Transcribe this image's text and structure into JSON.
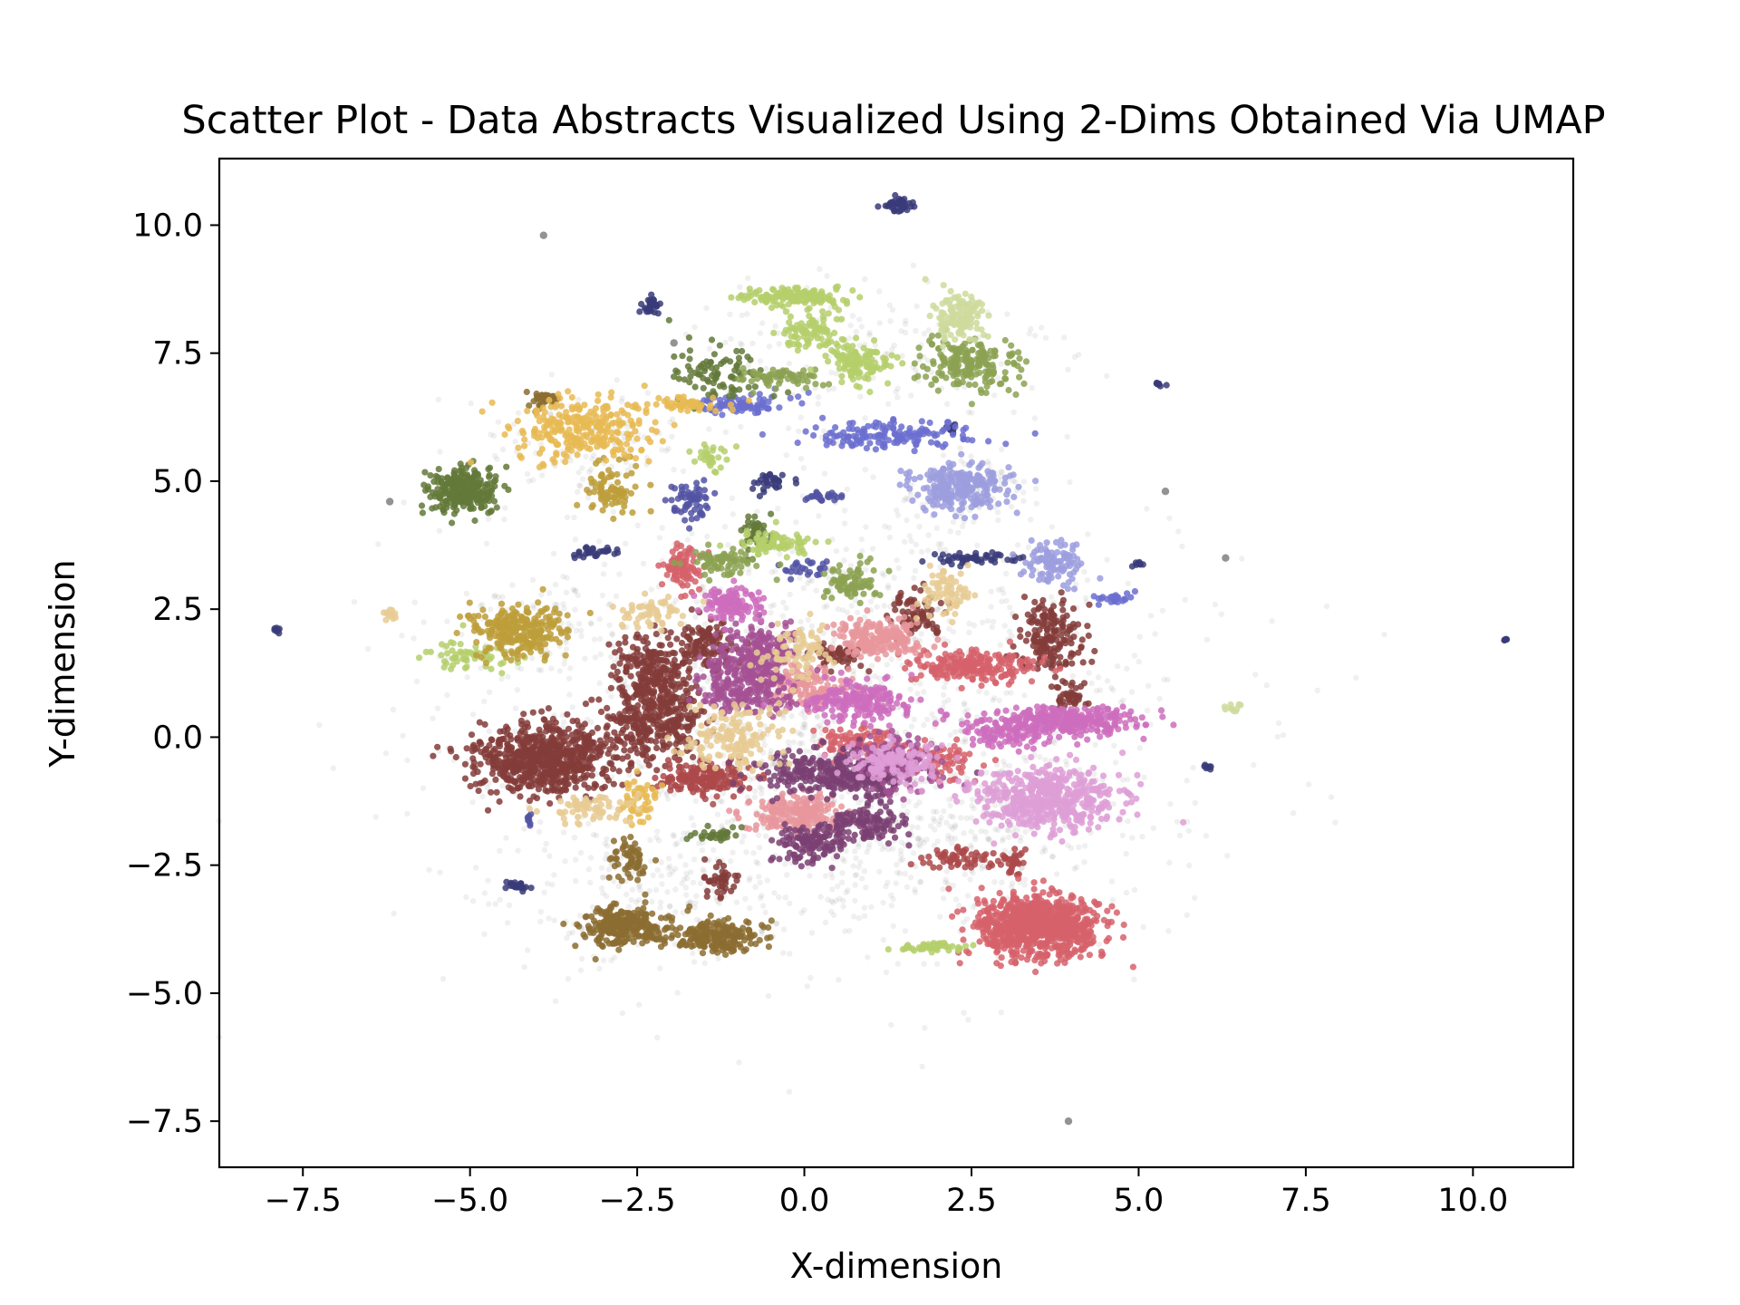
{
  "chart_data": {
    "type": "scatter",
    "title": "Scatter Plot - Data Abstracts Visualized Using 2-Dims Obtained Via UMAP",
    "xlabel": "X-dimension",
    "ylabel": "Y-dimension",
    "xlim": [
      -8.75,
      11.5
    ],
    "ylim": [
      -8.4,
      11.3
    ],
    "xticks": [
      -7.5,
      -5.0,
      -2.5,
      0.0,
      2.5,
      5.0,
      7.5,
      10.0
    ],
    "yticks": [
      -7.5,
      -5.0,
      -2.5,
      0.0,
      2.5,
      5.0,
      7.5,
      10.0
    ],
    "xtick_labels": [
      "−7.5",
      "−5.0",
      "−2.5",
      "0.0",
      "2.5",
      "5.0",
      "7.5",
      "10.0"
    ],
    "ytick_labels": [
      "−7.5",
      "−5.0",
      "−2.5",
      "0.0",
      "2.5",
      "5.0",
      "7.5",
      "10.0"
    ],
    "grid": false,
    "legend": "none",
    "background_points": {
      "color": "#808080",
      "clusters": [
        {
          "cx": 0.3,
          "cy": 0.3,
          "sx": 2.6,
          "sy": 2.2,
          "n": 1600
        },
        {
          "cx": -3.3,
          "cy": 5.8,
          "sx": 0.8,
          "sy": 0.5,
          "n": 120
        },
        {
          "cx": 1.0,
          "cy": 7.5,
          "sx": 1.5,
          "sy": 0.8,
          "n": 160
        },
        {
          "cx": 2.4,
          "cy": 4.8,
          "sx": 0.6,
          "sy": 0.4,
          "n": 80
        },
        {
          "cx": -4.2,
          "cy": 2.1,
          "sx": 0.6,
          "sy": 0.4,
          "n": 80
        },
        {
          "cx": 2.0,
          "cy": -2.0,
          "sx": 1.6,
          "sy": 0.8,
          "n": 200
        },
        {
          "cx": -2.0,
          "cy": -3.2,
          "sx": 1.2,
          "sy": 0.6,
          "n": 120
        }
      ],
      "outliers": [
        {
          "x": -3.9,
          "y": 9.8
        },
        {
          "x": -6.2,
          "y": 4.6
        },
        {
          "x": 5.4,
          "y": 4.8
        },
        {
          "x": 6.3,
          "y": 3.5
        },
        {
          "x": 3.95,
          "y": -7.5
        },
        {
          "x": -1.95,
          "y": 7.7
        }
      ]
    },
    "clusters": [
      {
        "color": "#843c39",
        "cx": -3.9,
        "cy": -0.4,
        "sx": 0.5,
        "sy": 0.35,
        "n": 700
      },
      {
        "color": "#843c39",
        "cx": -2.2,
        "cy": 0.4,
        "sx": 0.35,
        "sy": 0.4,
        "n": 350
      },
      {
        "color": "#843c39",
        "cx": -2.3,
        "cy": 1.4,
        "sx": 0.25,
        "sy": 0.3,
        "n": 160
      },
      {
        "color": "#843c39",
        "cx": -1.5,
        "cy": 1.8,
        "sx": 0.25,
        "sy": 0.25,
        "n": 120
      },
      {
        "color": "#843c39",
        "cx": 3.7,
        "cy": 2.0,
        "sx": 0.25,
        "sy": 0.35,
        "n": 170
      },
      {
        "color": "#843c39",
        "cx": 1.7,
        "cy": 2.4,
        "sx": 0.2,
        "sy": 0.2,
        "n": 80
      },
      {
        "color": "#843c39",
        "cx": -1.3,
        "cy": -2.8,
        "sx": 0.15,
        "sy": 0.15,
        "n": 40
      },
      {
        "color": "#843c39",
        "cx": 0.5,
        "cy": 1.6,
        "sx": 0.2,
        "sy": 0.15,
        "n": 50
      },
      {
        "color": "#843c39",
        "cx": 4.0,
        "cy": 0.8,
        "sx": 0.15,
        "sy": 0.12,
        "n": 40
      },
      {
        "color": "#ad494a",
        "cx": -1.5,
        "cy": -0.8,
        "sx": 0.35,
        "sy": 0.15,
        "n": 180
      },
      {
        "color": "#ad494a",
        "cx": 2.3,
        "cy": -2.4,
        "sx": 0.25,
        "sy": 0.1,
        "n": 60
      },
      {
        "color": "#ad494a",
        "cx": 3.1,
        "cy": -2.4,
        "sx": 0.1,
        "sy": 0.15,
        "n": 30
      },
      {
        "color": "#d6616b",
        "cx": 3.5,
        "cy": -3.7,
        "sx": 0.45,
        "sy": 0.3,
        "n": 850
      },
      {
        "color": "#d6616b",
        "cx": 2.5,
        "cy": 1.4,
        "sx": 0.45,
        "sy": 0.15,
        "n": 220
      },
      {
        "color": "#d6616b",
        "cx": -1.8,
        "cy": 3.3,
        "sx": 0.15,
        "sy": 0.25,
        "n": 90
      },
      {
        "color": "#d6616b",
        "cx": 0.7,
        "cy": -0.1,
        "sx": 0.3,
        "sy": 0.15,
        "n": 90
      },
      {
        "color": "#d6616b",
        "cx": 2.0,
        "cy": -0.5,
        "sx": 0.3,
        "sy": 0.2,
        "n": 70
      },
      {
        "color": "#e7969c",
        "cx": 1.1,
        "cy": 1.9,
        "sx": 0.35,
        "sy": 0.18,
        "n": 200
      },
      {
        "color": "#e7969c",
        "cx": -0.1,
        "cy": -1.5,
        "sx": 0.35,
        "sy": 0.2,
        "n": 200
      },
      {
        "color": "#e7969c",
        "cx": 0.0,
        "cy": 1.0,
        "sx": 0.3,
        "sy": 0.2,
        "n": 140
      },
      {
        "color": "#7b4173",
        "cx": 0.4,
        "cy": -0.7,
        "sx": 0.6,
        "sy": 0.2,
        "n": 300
      },
      {
        "color": "#7b4173",
        "cx": 0.1,
        "cy": -2.1,
        "sx": 0.25,
        "sy": 0.18,
        "n": 120
      },
      {
        "color": "#7b4173",
        "cx": 0.9,
        "cy": -1.7,
        "sx": 0.3,
        "sy": 0.15,
        "n": 120
      },
      {
        "color": "#7b4173",
        "cx": 1.1,
        "cy": -0.8,
        "sx": 0.2,
        "sy": 0.25,
        "n": 70
      },
      {
        "color": "#a55194",
        "cx": -0.9,
        "cy": 1.1,
        "sx": 0.35,
        "sy": 0.3,
        "n": 300
      },
      {
        "color": "#a55194",
        "cx": -0.6,
        "cy": 1.8,
        "sx": 0.25,
        "sy": 0.2,
        "n": 120
      },
      {
        "color": "#a55194",
        "cx": 1.4,
        "cy": -0.5,
        "sx": 0.3,
        "sy": 0.25,
        "n": 120
      },
      {
        "color": "#ce6dbd",
        "cx": -1.1,
        "cy": 2.6,
        "sx": 0.2,
        "sy": 0.18,
        "n": 120
      },
      {
        "color": "#ce6dbd",
        "cx": 3.9,
        "cy": 0.3,
        "sx": 0.6,
        "sy": 0.15,
        "n": 300
      },
      {
        "color": "#ce6dbd",
        "cx": 0.8,
        "cy": 0.7,
        "sx": 0.4,
        "sy": 0.2,
        "n": 200
      },
      {
        "color": "#ce6dbd",
        "cx": 2.9,
        "cy": 0.1,
        "sx": 0.3,
        "sy": 0.15,
        "n": 90
      },
      {
        "color": "#de9ed6",
        "cx": 3.6,
        "cy": -1.2,
        "sx": 0.55,
        "sy": 0.3,
        "n": 500
      },
      {
        "color": "#de9ed6",
        "cx": 1.3,
        "cy": -0.5,
        "sx": 0.35,
        "sy": 0.2,
        "n": 150
      },
      {
        "color": "#393b79",
        "cx": 1.4,
        "cy": 10.4,
        "sx": 0.12,
        "sy": 0.08,
        "n": 40
      },
      {
        "color": "#393b79",
        "cx": -2.3,
        "cy": 8.4,
        "sx": 0.06,
        "sy": 0.08,
        "n": 30
      },
      {
        "color": "#393b79",
        "cx": -7.9,
        "cy": 2.1,
        "sx": 0.03,
        "sy": 0.03,
        "n": 8
      },
      {
        "color": "#393b79",
        "cx": 10.5,
        "cy": 1.9,
        "sx": 0.02,
        "sy": 0.02,
        "n": 6
      },
      {
        "color": "#393b79",
        "cx": 5.3,
        "cy": 6.9,
        "sx": 0.04,
        "sy": 0.03,
        "n": 8
      },
      {
        "color": "#393b79",
        "cx": 6.0,
        "cy": -0.6,
        "sx": 0.04,
        "sy": 0.03,
        "n": 8
      },
      {
        "color": "#393b79",
        "cx": 2.5,
        "cy": 3.5,
        "sx": 0.3,
        "sy": 0.06,
        "n": 50
      },
      {
        "color": "#393b79",
        "cx": 5.0,
        "cy": 3.4,
        "sx": 0.05,
        "sy": 0.05,
        "n": 10
      },
      {
        "color": "#393b79",
        "cx": -3.2,
        "cy": 3.6,
        "sx": 0.2,
        "sy": 0.06,
        "n": 30
      },
      {
        "color": "#393b79",
        "cx": -0.5,
        "cy": 5.0,
        "sx": 0.15,
        "sy": 0.1,
        "n": 30
      },
      {
        "color": "#393b79",
        "cx": -4.3,
        "cy": -2.9,
        "sx": 0.1,
        "sy": 0.05,
        "n": 25
      },
      {
        "color": "#393b79",
        "cx": 2.2,
        "cy": 6.0,
        "sx": 0.04,
        "sy": 0.06,
        "n": 10
      },
      {
        "color": "#5254a3",
        "cx": -1.7,
        "cy": 4.6,
        "sx": 0.15,
        "sy": 0.2,
        "n": 60
      },
      {
        "color": "#5254a3",
        "cx": 0.3,
        "cy": 4.7,
        "sx": 0.15,
        "sy": 0.05,
        "n": 25
      },
      {
        "color": "#5254a3",
        "cx": -4.1,
        "cy": -1.6,
        "sx": 0.04,
        "sy": 0.06,
        "n": 8
      },
      {
        "color": "#5254a3",
        "cx": 0.0,
        "cy": 3.3,
        "sx": 0.2,
        "sy": 0.08,
        "n": 25
      },
      {
        "color": "#6b6ecf",
        "cx": -1.0,
        "cy": 6.5,
        "sx": 0.4,
        "sy": 0.1,
        "n": 90
      },
      {
        "color": "#6b6ecf",
        "cx": 1.2,
        "cy": 5.9,
        "sx": 0.6,
        "sy": 0.15,
        "n": 150
      },
      {
        "color": "#6b6ecf",
        "cx": 4.6,
        "cy": 2.7,
        "sx": 0.15,
        "sy": 0.06,
        "n": 25
      },
      {
        "color": "#9c9ede",
        "cx": 2.3,
        "cy": 4.9,
        "sx": 0.35,
        "sy": 0.22,
        "n": 260
      },
      {
        "color": "#9c9ede",
        "cx": 3.7,
        "cy": 3.4,
        "sx": 0.25,
        "sy": 0.2,
        "n": 100
      },
      {
        "color": "#637939",
        "cx": -5.1,
        "cy": 4.8,
        "sx": 0.25,
        "sy": 0.22,
        "n": 260
      },
      {
        "color": "#637939",
        "cx": -1.3,
        "cy": 7.1,
        "sx": 0.35,
        "sy": 0.3,
        "n": 90
      },
      {
        "color": "#637939",
        "cx": -0.7,
        "cy": 4.0,
        "sx": 0.15,
        "sy": 0.2,
        "n": 40
      },
      {
        "color": "#637939",
        "cx": -1.3,
        "cy": -1.9,
        "sx": 0.2,
        "sy": 0.06,
        "n": 30
      },
      {
        "color": "#8ca252",
        "cx": 2.5,
        "cy": 7.3,
        "sx": 0.4,
        "sy": 0.25,
        "n": 200
      },
      {
        "color": "#8ca252",
        "cx": -0.3,
        "cy": 7.0,
        "sx": 0.3,
        "sy": 0.1,
        "n": 60
      },
      {
        "color": "#8ca252",
        "cx": 0.7,
        "cy": 3.0,
        "sx": 0.2,
        "sy": 0.2,
        "n": 80
      },
      {
        "color": "#8ca252",
        "cx": -1.2,
        "cy": 3.4,
        "sx": 0.3,
        "sy": 0.15,
        "n": 70
      },
      {
        "color": "#b5cf6b",
        "cx": -0.2,
        "cy": 8.6,
        "sx": 0.4,
        "sy": 0.08,
        "n": 140
      },
      {
        "color": "#b5cf6b",
        "cx": 0.8,
        "cy": 7.3,
        "sx": 0.25,
        "sy": 0.2,
        "n": 120
      },
      {
        "color": "#b5cf6b",
        "cx": 0.1,
        "cy": 7.9,
        "sx": 0.25,
        "sy": 0.2,
        "n": 80
      },
      {
        "color": "#b5cf6b",
        "cx": -0.4,
        "cy": 3.8,
        "sx": 0.3,
        "sy": 0.12,
        "n": 80
      },
      {
        "color": "#b5cf6b",
        "cx": -4.9,
        "cy": 1.6,
        "sx": 0.3,
        "sy": 0.15,
        "n": 60
      },
      {
        "color": "#b5cf6b",
        "cx": 1.9,
        "cy": -4.1,
        "sx": 0.3,
        "sy": 0.04,
        "n": 50
      },
      {
        "color": "#b5cf6b",
        "cx": -1.4,
        "cy": 5.5,
        "sx": 0.15,
        "sy": 0.15,
        "n": 30
      },
      {
        "color": "#cedb9c",
        "cx": 2.3,
        "cy": 8.2,
        "sx": 0.2,
        "sy": 0.25,
        "n": 120
      },
      {
        "color": "#cedb9c",
        "cx": 6.4,
        "cy": 0.6,
        "sx": 0.08,
        "sy": 0.04,
        "n": 10
      },
      {
        "color": "#8c6d31",
        "cx": -2.7,
        "cy": -3.7,
        "sx": 0.3,
        "sy": 0.2,
        "n": 260
      },
      {
        "color": "#8c6d31",
        "cx": -1.3,
        "cy": -3.9,
        "sx": 0.35,
        "sy": 0.15,
        "n": 200
      },
      {
        "color": "#8c6d31",
        "cx": -2.6,
        "cy": -2.4,
        "sx": 0.15,
        "sy": 0.18,
        "n": 60
      },
      {
        "color": "#8c6d31",
        "cx": -3.9,
        "cy": 6.6,
        "sx": 0.12,
        "sy": 0.08,
        "n": 30
      },
      {
        "color": "#bd9e39",
        "cx": -4.3,
        "cy": 2.1,
        "sx": 0.35,
        "sy": 0.25,
        "n": 250
      },
      {
        "color": "#bd9e39",
        "cx": -2.9,
        "cy": 4.9,
        "sx": 0.2,
        "sy": 0.25,
        "n": 80
      },
      {
        "color": "#e7ba52",
        "cx": -3.3,
        "cy": 6.0,
        "sx": 0.5,
        "sy": 0.3,
        "n": 260
      },
      {
        "color": "#e7ba52",
        "cx": -2.5,
        "cy": -1.2,
        "sx": 0.15,
        "sy": 0.2,
        "n": 50
      },
      {
        "color": "#e7ba52",
        "cx": -1.8,
        "cy": 6.5,
        "sx": 0.3,
        "sy": 0.08,
        "n": 50
      },
      {
        "color": "#e7cb94",
        "cx": -1.1,
        "cy": 0.0,
        "sx": 0.35,
        "sy": 0.3,
        "n": 150
      },
      {
        "color": "#e7cb94",
        "cx": 2.1,
        "cy": 2.8,
        "sx": 0.2,
        "sy": 0.25,
        "n": 70
      },
      {
        "color": "#e7cb94",
        "cx": -3.2,
        "cy": -1.4,
        "sx": 0.3,
        "sy": 0.15,
        "n": 70
      },
      {
        "color": "#e7cb94",
        "cx": -2.3,
        "cy": 2.4,
        "sx": 0.25,
        "sy": 0.15,
        "n": 60
      },
      {
        "color": "#e7cb94",
        "cx": -0.1,
        "cy": 1.7,
        "sx": 0.25,
        "sy": 0.25,
        "n": 80
      },
      {
        "color": "#e7cb94",
        "cx": -6.2,
        "cy": 2.4,
        "sx": 0.08,
        "sy": 0.05,
        "n": 12
      }
    ]
  }
}
